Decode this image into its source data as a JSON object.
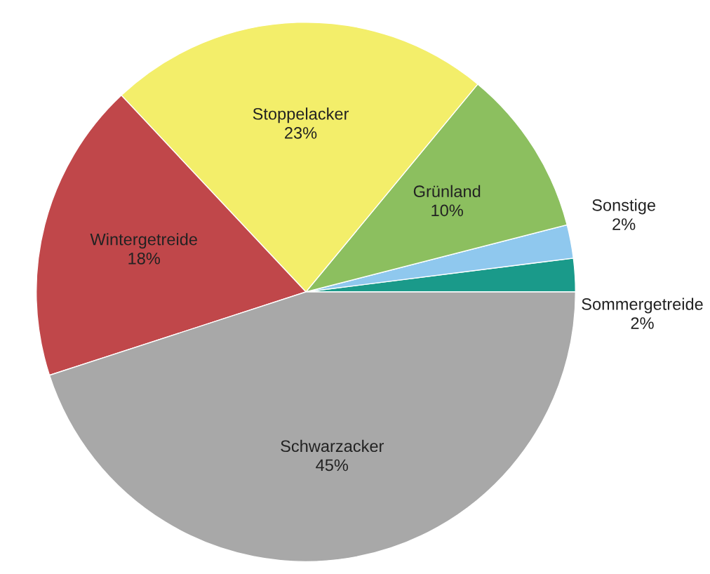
{
  "chart_data": {
    "type": "pie",
    "categories": [
      "Sommergetreide",
      "Sonstige",
      "Grünland",
      "Stoppelacker",
      "Wintergetreide",
      "Schwarzacker"
    ],
    "values": [
      2,
      2,
      10,
      23,
      18,
      45
    ],
    "value_labels": [
      "2%",
      "2%",
      "10%",
      "23%",
      "18%",
      "45%"
    ],
    "colors": [
      "#1a9a8a",
      "#8fc8ee",
      "#8cbf5f",
      "#f3ee6a",
      "#c0474a",
      "#a8a8a8"
    ]
  }
}
